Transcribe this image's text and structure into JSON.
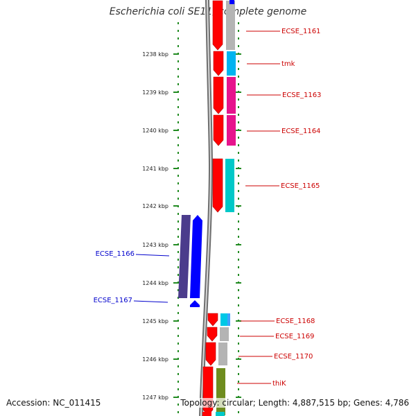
{
  "title": "Escherichia coli SE11, complete genome",
  "footer": {
    "accession": "Accession: NC_011415",
    "topology": "Topology: circular; Length: 4,887,515 bp; Genes: 4,786"
  },
  "scale_labels": [
    "1238 kbp",
    "1239 kbp",
    "1240 kbp",
    "1241 kbp",
    "1242 kbp",
    "1243 kbp",
    "1244 kbp",
    "1245 kbp",
    "1246 kbp",
    "1247 kbp"
  ],
  "genes_forward": [
    {
      "name": "ECSE_1161",
      "color": "#b4b4b4"
    },
    {
      "name": "tmk",
      "color": "#00b4f0"
    },
    {
      "name": "ECSE_1163",
      "color": "#e6148c"
    },
    {
      "name": "ECSE_1164",
      "color": "#e6148c"
    },
    {
      "name": "ECSE_1165",
      "color": "#00c8c8"
    },
    {
      "name": "ECSE_1168",
      "color": "#00c8e6"
    },
    {
      "name": "ECSE_1169",
      "color": "#b4b4b4"
    },
    {
      "name": "ECSE_1170",
      "color": "#b4b4b4"
    },
    {
      "name": "thiK",
      "color": "#6e8c1e"
    }
  ],
  "genes_reverse": [
    {
      "name": "ECSE_1166"
    },
    {
      "name": "ECSE_1167"
    }
  ],
  "colors": {
    "forward_label": "#cc0000",
    "reverse_label": "#0000cc",
    "forward_strand": "#ff0000",
    "reverse_strand": "#0000ff",
    "reverse_cog": "#4b3c8c",
    "scale_dots": "#228b22",
    "genome_line": "#808080"
  }
}
